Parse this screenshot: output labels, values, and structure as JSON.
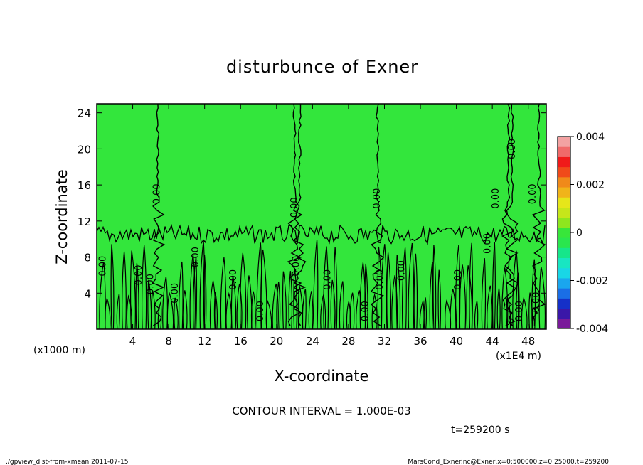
{
  "chart_data": {
    "type": "heatmap",
    "title": "disturbunce of Exner",
    "xlabel": "X-coordinate",
    "ylabel": "Z-coordinate",
    "x_unit_left": "(x1000 m)",
    "x_unit_right": "(x1E4 m)",
    "xlim": [
      0,
      50
    ],
    "ylim": [
      0,
      25
    ],
    "x_ticks": [
      4,
      8,
      12,
      16,
      20,
      24,
      28,
      32,
      36,
      40,
      44,
      48
    ],
    "y_ticks": [
      4,
      8,
      12,
      16,
      20,
      24
    ],
    "colorbar": {
      "range": [
        -0.004,
        0.004
      ],
      "tick_labels": [
        "0.004",
        "0.002",
        "0",
        "-0.002",
        "-0.004"
      ],
      "tick_values": [
        0.004,
        0.002,
        0,
        -0.002,
        -0.004
      ],
      "colors": [
        "#7a1a9a",
        "#3a17a8",
        "#1530c8",
        "#1a6ee6",
        "#1aa6ee",
        "#19d6e6",
        "#18e6c2",
        "#16e68a",
        "#2ae64e",
        "#38e63a",
        "#8ee61e",
        "#c6e61a",
        "#e6e61a",
        "#f0b41a",
        "#f08a1a",
        "#f04a1a",
        "#f01a1a",
        "#f06a6a",
        "#f3a2a2"
      ]
    },
    "contour_label": "0.00",
    "contour_interval_text": "CONTOUR INTERVAL = 1.000E-03",
    "time_text": "t=259200 s"
  },
  "footer": {
    "left": "./gpview_dist-from-xmean  2011-07-15",
    "right": "MarsCond_Exner.nc@Exner,x=0:500000,z=0:25000,t=259200"
  }
}
